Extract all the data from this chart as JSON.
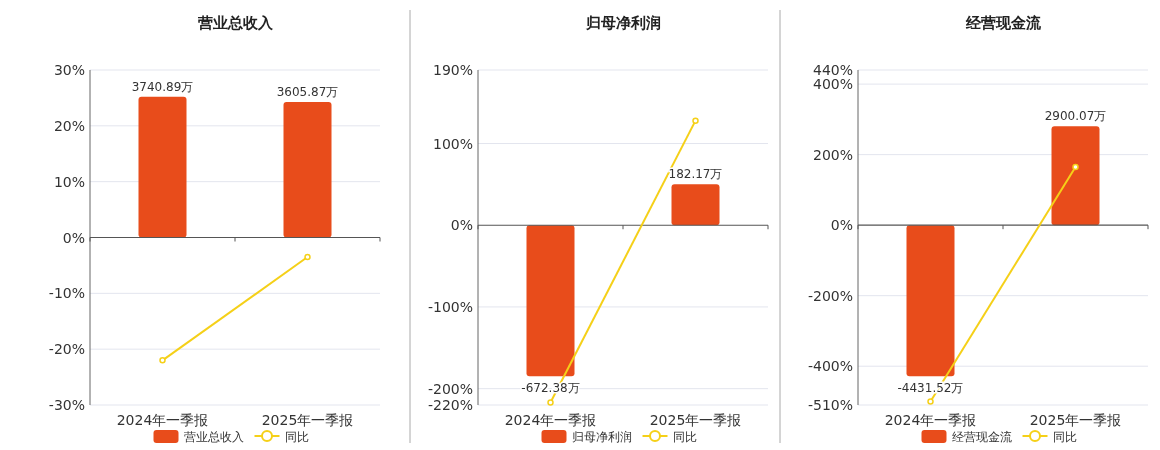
{
  "chart_data": [
    {
      "type": "bar",
      "title": "营业总收入",
      "categories": [
        "2024年一季报",
        "2025年一季报"
      ],
      "ylim": [
        -30,
        30
      ],
      "yticks": [
        {
          "value": -30,
          "label": "-30%"
        },
        {
          "value": -20,
          "label": "-20%"
        },
        {
          "value": -10,
          "label": "-10%"
        },
        {
          "value": 0,
          "label": "0%"
        },
        {
          "value": 10,
          "label": "10%"
        },
        {
          "value": 20,
          "label": "20%"
        },
        {
          "value": 30,
          "label": "30%"
        }
      ],
      "grid": "y",
      "legend": "bottom",
      "marker": "circle",
      "series": [
        {
          "name": "营业总收入",
          "axis": "y2",
          "color": "#e84c1b",
          "values": [
            3740.89,
            3605.87
          ],
          "value_labels": [
            "3740.89万",
            "3605.87万"
          ]
        },
        {
          "name": "同比",
          "type": "line",
          "color": "#f5d018",
          "values": [
            -22,
            -3.5
          ]
        }
      ]
    },
    {
      "type": "bar",
      "title": "归母净利润",
      "categories": [
        "2024年一季报",
        "2025年一季报"
      ],
      "ylim": [
        -220,
        190
      ],
      "yticks": [
        {
          "value": -220,
          "label": "-220%"
        },
        {
          "value": -200,
          "label": "-200%"
        },
        {
          "value": -100,
          "label": "-100%"
        },
        {
          "value": 0,
          "label": "0%"
        },
        {
          "value": 100,
          "label": "100%"
        },
        {
          "value": 190,
          "label": "190%"
        }
      ],
      "grid": "y",
      "legend": "bottom",
      "marker": "circle",
      "series": [
        {
          "name": "归母净利润",
          "axis": "y2",
          "color": "#e84c1b",
          "values": [
            -672.38,
            182.17
          ],
          "value_labels": [
            "-672.38万",
            "182.17万"
          ]
        },
        {
          "name": "同比",
          "type": "line",
          "color": "#f5d018",
          "values": [
            -217,
            128
          ]
        }
      ]
    },
    {
      "type": "bar",
      "title": "经营现金流",
      "categories": [
        "2024年一季报",
        "2025年一季报"
      ],
      "ylim": [
        -510,
        440
      ],
      "yticks": [
        {
          "value": -510,
          "label": "-510%"
        },
        {
          "value": -400,
          "label": "-400%"
        },
        {
          "value": -200,
          "label": "-200%"
        },
        {
          "value": 0,
          "label": "0%"
        },
        {
          "value": 200,
          "label": "200%"
        },
        {
          "value": 400,
          "label": "400%"
        },
        {
          "value": 440,
          "label": "440%"
        }
      ],
      "grid": "y",
      "legend": "bottom",
      "marker": "circle",
      "series": [
        {
          "name": "经营现金流",
          "axis": "y2",
          "color": "#e84c1b",
          "values": [
            -4431.52,
            2900.07
          ],
          "value_labels": [
            "-4431.52万",
            "2900.07万"
          ]
        },
        {
          "name": "同比",
          "type": "line",
          "color": "#f5d018",
          "values": [
            -500,
            165
          ]
        }
      ]
    }
  ]
}
